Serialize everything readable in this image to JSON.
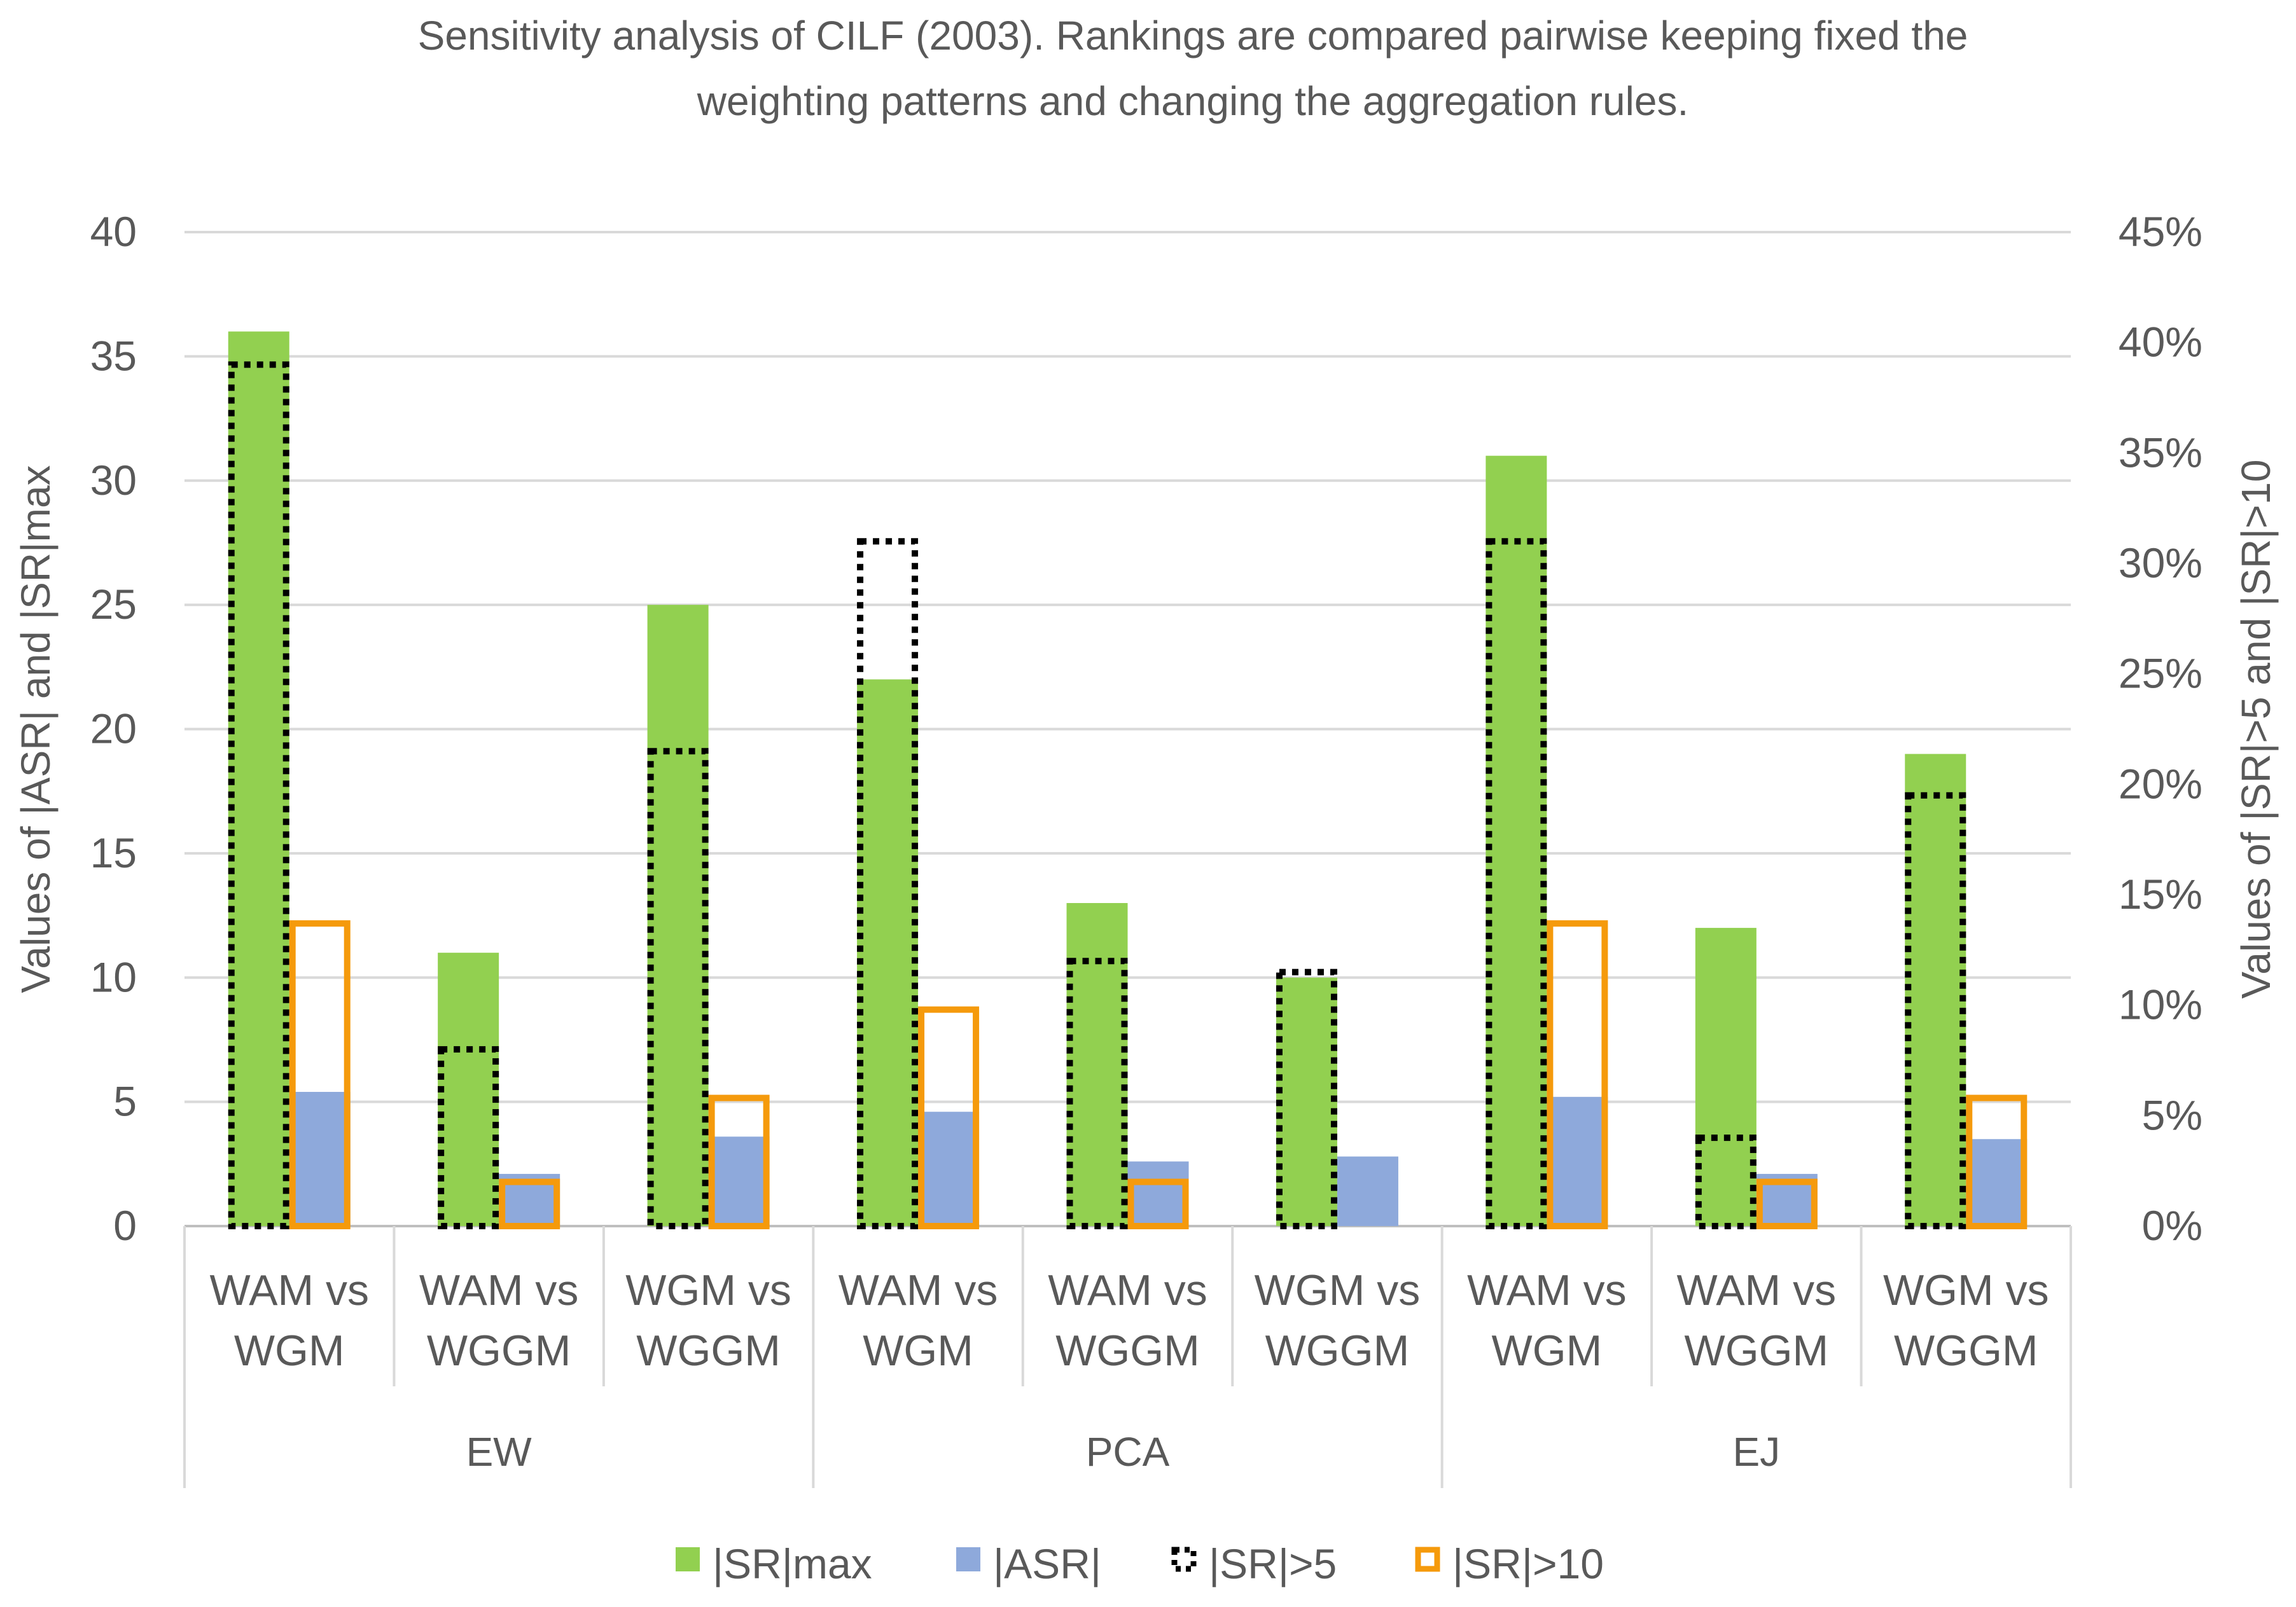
{
  "chart_data": {
    "type": "bar",
    "title": [
      "Sensitivity analysis of CILF (2003). Rankings are compared pairwise keeping fixed the",
      "weighting patterns and changing the aggregation rules."
    ],
    "groups": [
      {
        "label": "EW",
        "categories": [
          [
            "WAM vs",
            "WGM"
          ],
          [
            "WAM vs",
            "WGGM"
          ],
          [
            "WGM vs",
            "WGGM"
          ]
        ]
      },
      {
        "label": "PCA",
        "categories": [
          [
            "WAM vs",
            "WGM"
          ],
          [
            "WAM vs",
            "WGGM"
          ],
          [
            "WGM vs",
            "WGGM"
          ]
        ]
      },
      {
        "label": "EJ",
        "categories": [
          [
            "WAM vs",
            "WGM"
          ],
          [
            "WAM vs",
            "WGGM"
          ],
          [
            "WGM vs",
            "WGGM"
          ]
        ]
      }
    ],
    "series": [
      {
        "name": "|SR|max",
        "axis": "left",
        "style": "solid",
        "color": "#92D050",
        "values": [
          36,
          11,
          25,
          22,
          13,
          10,
          31,
          12,
          19
        ]
      },
      {
        "name": "|ASR|",
        "axis": "left",
        "style": "solid",
        "color": "#8EA9DB",
        "values": [
          5.4,
          2.1,
          3.6,
          4.6,
          2.6,
          2.8,
          5.2,
          2.1,
          3.5
        ]
      },
      {
        "name": "|SR|>5",
        "axis": "right",
        "style": "dotted-outline",
        "color": "#000000",
        "values": [
          0.39,
          0.08,
          0.215,
          0.31,
          0.12,
          0.115,
          0.31,
          0.04,
          0.195
        ]
      },
      {
        "name": "|SR|>10",
        "axis": "right",
        "style": "outline",
        "color": "#F59A0C",
        "values": [
          0.137,
          0.02,
          0.058,
          0.098,
          0.02,
          0.0,
          0.137,
          0.02,
          0.058
        ]
      }
    ],
    "left_axis": {
      "label": "Values of |ASR| and |SR|max",
      "min": 0,
      "max": 40,
      "step": 5,
      "ticks": [
        "0",
        "5",
        "10",
        "15",
        "20",
        "25",
        "30",
        "35",
        "40"
      ]
    },
    "right_axis": {
      "label": "Values of |SR|>5 and |SR|>10",
      "min": 0,
      "max": 0.45,
      "step": 0.05,
      "ticks": [
        "0%",
        "5%",
        "10%",
        "15%",
        "20%",
        "25%",
        "30%",
        "35%",
        "40%",
        "45%"
      ]
    },
    "grid": true,
    "legend_position": "bottom"
  }
}
